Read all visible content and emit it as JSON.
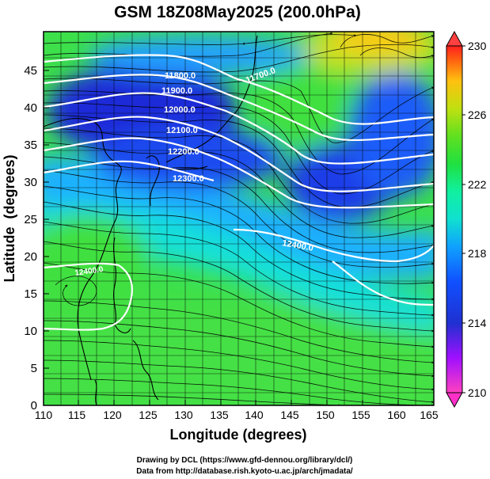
{
  "title": "GSM 18Z08May2025 (200.0hPa)",
  "axes": {
    "x_label": "Longitude (degrees)",
    "y_label": "Latitude  (degrees)",
    "x_ticks": [
      "110",
      "115",
      "120",
      "125",
      "130",
      "135",
      "140",
      "145",
      "150",
      "155",
      "160",
      "165"
    ],
    "y_ticks": [
      "0",
      "5",
      "10",
      "15",
      "20",
      "25",
      "30",
      "35",
      "40",
      "45"
    ]
  },
  "contours": [
    "11700.0",
    "11800.0",
    "11900.0",
    "12000.0",
    "12100.0",
    "12200.0",
    "12300.0",
    "12400.0",
    "12400.0"
  ],
  "colorbar": {
    "ticks": [
      "230",
      "226",
      "222",
      "218",
      "214",
      "210"
    ],
    "colors": [
      "#ff40c0",
      "#a010ff",
      "#2030d0",
      "#1050ff",
      "#10a0ff",
      "#10e0d0",
      "#10f0a0",
      "#20e040",
      "#60e020",
      "#c0e010",
      "#ffc010",
      "#ff6010",
      "#ff2020"
    ]
  },
  "footer": {
    "line1": "Drawing by DCL (https://www.gfd-dennou.org/library/dcl/)",
    "line2": "Data from http://database.rish.kyoto-u.ac.jp/arch/jmadata/"
  }
}
